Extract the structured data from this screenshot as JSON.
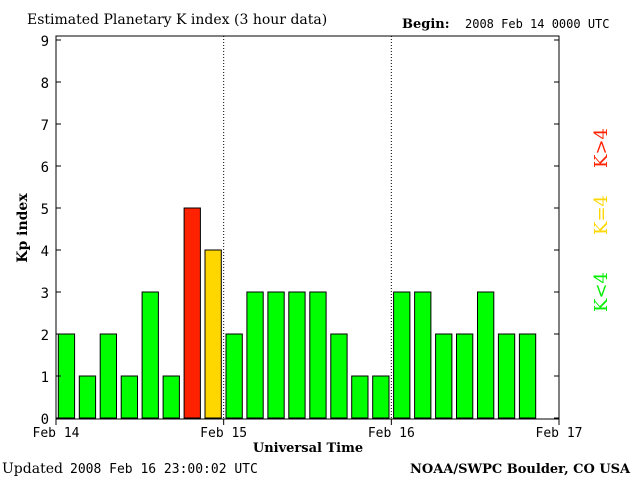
{
  "header": {
    "title": "Estimated Planetary K index (3 hour data)",
    "begin_label": "Begin:",
    "begin_value": "2008 Feb 14 0000 UTC"
  },
  "footer": {
    "updated_label": "Updated",
    "updated_value": "2008 Feb 16 23:00:02 UTC",
    "source": "NOAA/SWPC Boulder, CO USA"
  },
  "legend": {
    "low": "K<4",
    "equal": "K=4",
    "high": "K>4"
  },
  "colors": {
    "low": "#00ff00",
    "equal": "#ffd700",
    "high": "#ff2200",
    "axis": "#000000"
  },
  "chart_data": {
    "type": "bar",
    "title": "Estimated Planetary K index (3 hour data)",
    "xlabel": "Universal Time",
    "ylabel": "Kp index",
    "ylim": [
      0,
      9
    ],
    "yticks": [
      0,
      1,
      2,
      3,
      4,
      5,
      6,
      7,
      8,
      9
    ],
    "x_range_days": [
      0,
      3
    ],
    "x_ticks": [
      {
        "day": 0,
        "label": "Feb 14"
      },
      {
        "day": 1,
        "label": "Feb 15"
      },
      {
        "day": 2,
        "label": "Feb 16"
      },
      {
        "day": 3,
        "label": "Feb 17"
      }
    ],
    "day_dividers": [
      1,
      2
    ],
    "interval_hours": 3,
    "values": [
      2,
      1,
      2,
      1,
      3,
      1,
      5,
      4,
      2,
      3,
      3,
      3,
      3,
      2,
      1,
      1,
      3,
      3,
      2,
      2,
      3,
      2,
      2
    ],
    "grid": false
  }
}
